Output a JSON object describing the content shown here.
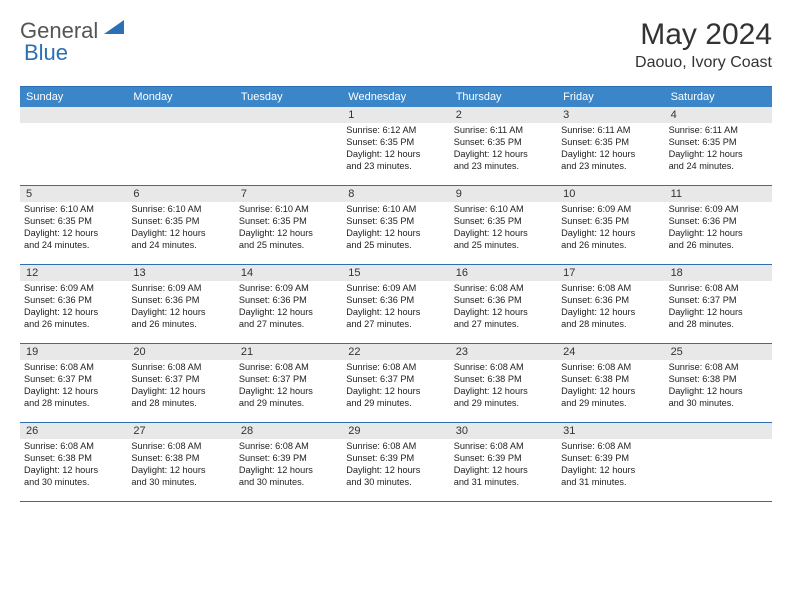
{
  "logo": {
    "text_general": "General",
    "text_blue": "Blue"
  },
  "title": {
    "month": "May 2024",
    "location": "Daouo, Ivory Coast"
  },
  "colors": {
    "header_bg": "#3b86c8",
    "border": "#2c6fb5",
    "daynum_bg": "#e8e8e8",
    "text": "#222222",
    "background": "#ffffff"
  },
  "typography": {
    "month_title_fontsize": 30,
    "location_fontsize": 16,
    "day_header_fontsize": 11,
    "daynum_fontsize": 11,
    "cell_fontsize": 9.2
  },
  "day_headers": [
    "Sunday",
    "Monday",
    "Tuesday",
    "Wednesday",
    "Thursday",
    "Friday",
    "Saturday"
  ],
  "weeks": [
    [
      {
        "day": ""
      },
      {
        "day": ""
      },
      {
        "day": ""
      },
      {
        "day": "1",
        "sunrise": "Sunrise: 6:12 AM",
        "sunset": "Sunset: 6:35 PM",
        "daylight1": "Daylight: 12 hours",
        "daylight2": "and 23 minutes."
      },
      {
        "day": "2",
        "sunrise": "Sunrise: 6:11 AM",
        "sunset": "Sunset: 6:35 PM",
        "daylight1": "Daylight: 12 hours",
        "daylight2": "and 23 minutes."
      },
      {
        "day": "3",
        "sunrise": "Sunrise: 6:11 AM",
        "sunset": "Sunset: 6:35 PM",
        "daylight1": "Daylight: 12 hours",
        "daylight2": "and 23 minutes."
      },
      {
        "day": "4",
        "sunrise": "Sunrise: 6:11 AM",
        "sunset": "Sunset: 6:35 PM",
        "daylight1": "Daylight: 12 hours",
        "daylight2": "and 24 minutes."
      }
    ],
    [
      {
        "day": "5",
        "sunrise": "Sunrise: 6:10 AM",
        "sunset": "Sunset: 6:35 PM",
        "daylight1": "Daylight: 12 hours",
        "daylight2": "and 24 minutes."
      },
      {
        "day": "6",
        "sunrise": "Sunrise: 6:10 AM",
        "sunset": "Sunset: 6:35 PM",
        "daylight1": "Daylight: 12 hours",
        "daylight2": "and 24 minutes."
      },
      {
        "day": "7",
        "sunrise": "Sunrise: 6:10 AM",
        "sunset": "Sunset: 6:35 PM",
        "daylight1": "Daylight: 12 hours",
        "daylight2": "and 25 minutes."
      },
      {
        "day": "8",
        "sunrise": "Sunrise: 6:10 AM",
        "sunset": "Sunset: 6:35 PM",
        "daylight1": "Daylight: 12 hours",
        "daylight2": "and 25 minutes."
      },
      {
        "day": "9",
        "sunrise": "Sunrise: 6:10 AM",
        "sunset": "Sunset: 6:35 PM",
        "daylight1": "Daylight: 12 hours",
        "daylight2": "and 25 minutes."
      },
      {
        "day": "10",
        "sunrise": "Sunrise: 6:09 AM",
        "sunset": "Sunset: 6:35 PM",
        "daylight1": "Daylight: 12 hours",
        "daylight2": "and 26 minutes."
      },
      {
        "day": "11",
        "sunrise": "Sunrise: 6:09 AM",
        "sunset": "Sunset: 6:36 PM",
        "daylight1": "Daylight: 12 hours",
        "daylight2": "and 26 minutes."
      }
    ],
    [
      {
        "day": "12",
        "sunrise": "Sunrise: 6:09 AM",
        "sunset": "Sunset: 6:36 PM",
        "daylight1": "Daylight: 12 hours",
        "daylight2": "and 26 minutes."
      },
      {
        "day": "13",
        "sunrise": "Sunrise: 6:09 AM",
        "sunset": "Sunset: 6:36 PM",
        "daylight1": "Daylight: 12 hours",
        "daylight2": "and 26 minutes."
      },
      {
        "day": "14",
        "sunrise": "Sunrise: 6:09 AM",
        "sunset": "Sunset: 6:36 PM",
        "daylight1": "Daylight: 12 hours",
        "daylight2": "and 27 minutes."
      },
      {
        "day": "15",
        "sunrise": "Sunrise: 6:09 AM",
        "sunset": "Sunset: 6:36 PM",
        "daylight1": "Daylight: 12 hours",
        "daylight2": "and 27 minutes."
      },
      {
        "day": "16",
        "sunrise": "Sunrise: 6:08 AM",
        "sunset": "Sunset: 6:36 PM",
        "daylight1": "Daylight: 12 hours",
        "daylight2": "and 27 minutes."
      },
      {
        "day": "17",
        "sunrise": "Sunrise: 6:08 AM",
        "sunset": "Sunset: 6:36 PM",
        "daylight1": "Daylight: 12 hours",
        "daylight2": "and 28 minutes."
      },
      {
        "day": "18",
        "sunrise": "Sunrise: 6:08 AM",
        "sunset": "Sunset: 6:37 PM",
        "daylight1": "Daylight: 12 hours",
        "daylight2": "and 28 minutes."
      }
    ],
    [
      {
        "day": "19",
        "sunrise": "Sunrise: 6:08 AM",
        "sunset": "Sunset: 6:37 PM",
        "daylight1": "Daylight: 12 hours",
        "daylight2": "and 28 minutes."
      },
      {
        "day": "20",
        "sunrise": "Sunrise: 6:08 AM",
        "sunset": "Sunset: 6:37 PM",
        "daylight1": "Daylight: 12 hours",
        "daylight2": "and 28 minutes."
      },
      {
        "day": "21",
        "sunrise": "Sunrise: 6:08 AM",
        "sunset": "Sunset: 6:37 PM",
        "daylight1": "Daylight: 12 hours",
        "daylight2": "and 29 minutes."
      },
      {
        "day": "22",
        "sunrise": "Sunrise: 6:08 AM",
        "sunset": "Sunset: 6:37 PM",
        "daylight1": "Daylight: 12 hours",
        "daylight2": "and 29 minutes."
      },
      {
        "day": "23",
        "sunrise": "Sunrise: 6:08 AM",
        "sunset": "Sunset: 6:38 PM",
        "daylight1": "Daylight: 12 hours",
        "daylight2": "and 29 minutes."
      },
      {
        "day": "24",
        "sunrise": "Sunrise: 6:08 AM",
        "sunset": "Sunset: 6:38 PM",
        "daylight1": "Daylight: 12 hours",
        "daylight2": "and 29 minutes."
      },
      {
        "day": "25",
        "sunrise": "Sunrise: 6:08 AM",
        "sunset": "Sunset: 6:38 PM",
        "daylight1": "Daylight: 12 hours",
        "daylight2": "and 30 minutes."
      }
    ],
    [
      {
        "day": "26",
        "sunrise": "Sunrise: 6:08 AM",
        "sunset": "Sunset: 6:38 PM",
        "daylight1": "Daylight: 12 hours",
        "daylight2": "and 30 minutes."
      },
      {
        "day": "27",
        "sunrise": "Sunrise: 6:08 AM",
        "sunset": "Sunset: 6:38 PM",
        "daylight1": "Daylight: 12 hours",
        "daylight2": "and 30 minutes."
      },
      {
        "day": "28",
        "sunrise": "Sunrise: 6:08 AM",
        "sunset": "Sunset: 6:39 PM",
        "daylight1": "Daylight: 12 hours",
        "daylight2": "and 30 minutes."
      },
      {
        "day": "29",
        "sunrise": "Sunrise: 6:08 AM",
        "sunset": "Sunset: 6:39 PM",
        "daylight1": "Daylight: 12 hours",
        "daylight2": "and 30 minutes."
      },
      {
        "day": "30",
        "sunrise": "Sunrise: 6:08 AM",
        "sunset": "Sunset: 6:39 PM",
        "daylight1": "Daylight: 12 hours",
        "daylight2": "and 31 minutes."
      },
      {
        "day": "31",
        "sunrise": "Sunrise: 6:08 AM",
        "sunset": "Sunset: 6:39 PM",
        "daylight1": "Daylight: 12 hours",
        "daylight2": "and 31 minutes."
      },
      {
        "day": ""
      }
    ]
  ]
}
